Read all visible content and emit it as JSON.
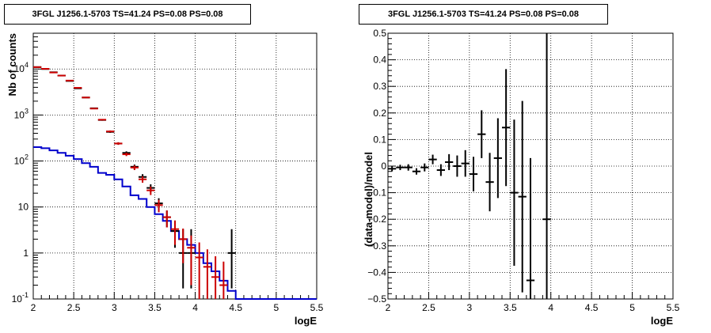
{
  "chart_data": [
    {
      "type": "line",
      "title": "3FGL J1256.1-5703 TS=41.24 PS=0.08 PS=0.08",
      "xlabel": "logE",
      "ylabel": "Nb of counts",
      "xlim": [
        2,
        5.5
      ],
      "ylim": [
        0.1,
        60000
      ],
      "yscale": "log",
      "grid": true,
      "xticks": [
        "2",
        "2.5",
        "3",
        "3.5",
        "4",
        "4.5",
        "5",
        "5.5"
      ],
      "yticks": [
        "10⁻¹",
        "1",
        "10",
        "10²",
        "10³",
        "10⁴"
      ],
      "colors": {
        "data": "#000000",
        "model": "#cc0000",
        "source": "#0000cc"
      },
      "series": [
        {
          "role": "data",
          "x": [
            2.05,
            2.15,
            2.25,
            2.35,
            2.45,
            2.55,
            2.65,
            2.75,
            2.85,
            2.95,
            3.05,
            3.15,
            3.25,
            3.35,
            3.45,
            3.55,
            3.65,
            3.75,
            3.85,
            3.95,
            4.05,
            4.15,
            4.25,
            4.35,
            4.45
          ],
          "y": [
            11000,
            10000,
            8500,
            7200,
            5500,
            3800,
            2400,
            1400,
            780,
            430,
            240,
            150,
            75,
            45,
            26,
            12,
            6,
            3,
            1,
            1,
            0,
            0,
            0,
            0,
            1
          ],
          "yerr_low": [
            105,
            100,
            92,
            85,
            74,
            62,
            49,
            37,
            28,
            21,
            15,
            12,
            8.7,
            6.7,
            5.1,
            3.5,
            2.4,
            1.7,
            0.83,
            0.83,
            0,
            0,
            0,
            0,
            0.83
          ],
          "yerr_high": [
            105,
            100,
            92,
            85,
            74,
            62,
            49,
            37,
            28,
            21,
            15,
            12,
            8.7,
            6.7,
            5.1,
            3.5,
            2.4,
            1.7,
            2.3,
            2.3,
            0,
            0,
            0,
            0,
            2.3
          ]
        },
        {
          "role": "model",
          "x": [
            2.05,
            2.15,
            2.25,
            2.35,
            2.45,
            2.55,
            2.65,
            2.75,
            2.85,
            2.95,
            3.05,
            3.15,
            3.25,
            3.35,
            3.45,
            3.55,
            3.65,
            3.75,
            3.85,
            3.95,
            4.05,
            4.15,
            4.25,
            4.35
          ],
          "y": [
            11000,
            10100,
            8400,
            7200,
            5600,
            3900,
            2400,
            1380,
            790,
            440,
            240,
            140,
            72,
            40,
            23,
            11,
            6,
            3.3,
            2,
            1.3,
            0.8,
            0.5,
            0.3,
            0.2
          ],
          "yerr": [
            105,
            100,
            92,
            85,
            75,
            62,
            49,
            37,
            28,
            21,
            15,
            12,
            8.5,
            6.3,
            4.8,
            3.3,
            2.4,
            1.8,
            1.4,
            1.1,
            0.9,
            0.7,
            0.55,
            0.45
          ]
        },
        {
          "role": "source",
          "step": true,
          "edges": [
            2.0,
            2.1,
            2.2,
            2.3,
            2.4,
            2.5,
            2.6,
            2.7,
            2.8,
            2.9,
            3.0,
            3.1,
            3.2,
            3.3,
            3.4,
            3.5,
            3.6,
            3.7,
            3.8,
            3.9,
            4.0,
            4.1,
            4.2,
            4.3,
            4.4,
            4.5,
            5.5
          ],
          "y": [
            200,
            190,
            170,
            150,
            130,
            110,
            90,
            75,
            55,
            50,
            40,
            28,
            18,
            15,
            10,
            7,
            5,
            3,
            2,
            1.5,
            1,
            0.6,
            0.4,
            0.25,
            0.15,
            0.1
          ]
        }
      ]
    },
    {
      "type": "scatter",
      "title": "3FGL J1256.1-5703 TS=41.24 PS=0.08 PS=0.08",
      "xlabel": "logE",
      "ylabel": "(data-model)/model",
      "xlim": [
        2,
        5.5
      ],
      "ylim": [
        -0.5,
        0.5
      ],
      "grid": true,
      "xticks": [
        "2",
        "2.5",
        "3",
        "3.5",
        "4",
        "4.5",
        "5",
        "5.5"
      ],
      "yticks": [
        "−0.5",
        "−0.4",
        "−0.3",
        "−0.2",
        "−0.1",
        "0",
        "0.1",
        "0.2",
        "0.3",
        "0.4",
        "0.5"
      ],
      "series": [
        {
          "role": "residual",
          "x": [
            2.05,
            2.15,
            2.25,
            2.35,
            2.45,
            2.55,
            2.65,
            2.75,
            2.85,
            2.95,
            3.05,
            3.15,
            3.25,
            3.35,
            3.45,
            3.55,
            3.65,
            3.75,
            3.95
          ],
          "y": [
            -0.01,
            -0.005,
            -0.005,
            -0.02,
            -0.005,
            0.025,
            -0.015,
            0.015,
            0,
            0.01,
            -0.03,
            0.12,
            -0.06,
            0.03,
            0.145,
            -0.1,
            -0.115,
            -0.43,
            -0.2
          ],
          "yerr": [
            0.01,
            0.01,
            0.012,
            0.012,
            0.015,
            0.018,
            0.022,
            0.03,
            0.04,
            0.05,
            0.065,
            0.09,
            0.11,
            0.15,
            0.22,
            0.275,
            0.36,
            0.46,
            0.8
          ]
        }
      ]
    }
  ]
}
